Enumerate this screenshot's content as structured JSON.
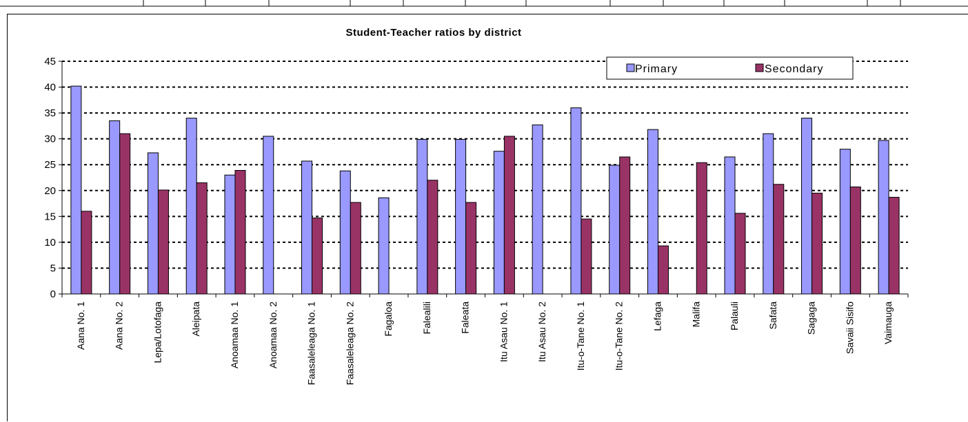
{
  "chart_data": {
    "type": "bar",
    "title": "Student-Teacher ratios by district",
    "xlabel": "",
    "ylabel": "",
    "ylim": [
      0,
      45
    ],
    "yticks": [
      0,
      5,
      10,
      15,
      20,
      25,
      30,
      35,
      40,
      45
    ],
    "grid": true,
    "legend_position": "top-right",
    "categories": [
      "Aana No. 1",
      "Aana No. 2",
      "Lepa/Lotofaga",
      "Aleipata",
      "Anoamaa No. 1",
      "Anoamaa No. 2",
      "Faasaleleaga No. 1",
      "Faasaleleaga No. 2",
      "Fagaloa",
      "Falealili",
      "Faleata",
      "Itu Asau No. 1",
      "Itu Asau No. 2",
      "Itu-o-Tane No. 1",
      "Itu-o-Tane No. 2",
      "Lefaga",
      "Malifa",
      "Palauli",
      "Safata",
      "Sagaga",
      "Savaii Sisifo",
      "Vaimauga"
    ],
    "series": [
      {
        "name": "Primary",
        "color": "#9999ff",
        "values": [
          40.2,
          33.5,
          27.3,
          34.0,
          23.0,
          30.5,
          25.7,
          23.8,
          18.6,
          29.9,
          29.9,
          27.6,
          32.7,
          36.0,
          24.9,
          31.8,
          null,
          26.5,
          31.0,
          34.0,
          28.0,
          29.7
        ]
      },
      {
        "name": "Secondary",
        "color": "#993366",
        "values": [
          16.0,
          31.0,
          20.1,
          21.5,
          23.9,
          null,
          14.7,
          17.7,
          null,
          22.0,
          17.7,
          30.5,
          null,
          14.5,
          26.5,
          9.3,
          25.4,
          15.6,
          21.2,
          19.5,
          20.7,
          18.7
        ]
      }
    ]
  }
}
